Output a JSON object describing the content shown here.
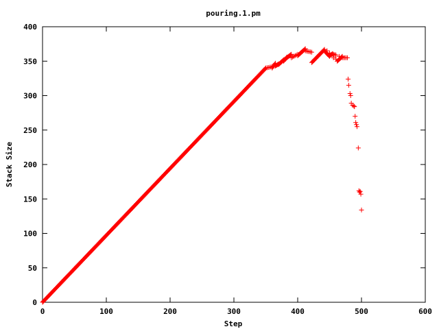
{
  "chart_data": {
    "type": "scatter",
    "title": "pouring.1.pm",
    "xlabel": "Step",
    "ylabel": "Stack Size",
    "xlim": [
      0,
      600
    ],
    "ylim": [
      0,
      400
    ],
    "xticks": [
      0,
      100,
      200,
      300,
      400,
      500,
      600
    ],
    "yticks": [
      0,
      50,
      100,
      150,
      200,
      250,
      300,
      350,
      400
    ],
    "grid": false,
    "legend": "none",
    "marker": "+",
    "colors": {
      "series": "#ff0000",
      "axis": "#000000",
      "background": "#ffffff"
    },
    "series": [
      {
        "segments": [
          {
            "x0": 0,
            "y0": 0,
            "x1": 350,
            "y1": 340,
            "step": 1
          },
          {
            "x0": 350,
            "y0": 340,
            "x1": 360,
            "y1": 342,
            "step": 2
          },
          {
            "x0": 360,
            "y0": 340,
            "x1": 365,
            "y1": 347,
            "step": 1
          },
          {
            "x0": 365,
            "y0": 343,
            "x1": 370,
            "y1": 346,
            "step": 1
          },
          {
            "x0": 370,
            "y0": 345,
            "x1": 378,
            "y1": 352,
            "step": 1
          },
          {
            "x0": 378,
            "y0": 350,
            "x1": 383,
            "y1": 356,
            "step": 1
          },
          {
            "x0": 383,
            "y0": 355,
            "x1": 390,
            "y1": 360,
            "step": 1
          },
          {
            "x0": 390,
            "y0": 355,
            "x1": 400,
            "y1": 360,
            "step": 2
          },
          {
            "x0": 400,
            "y0": 358,
            "x1": 412,
            "y1": 368,
            "step": 1
          },
          {
            "x0": 412,
            "y0": 365,
            "x1": 422,
            "y1": 363,
            "step": 2
          },
          {
            "x0": 422,
            "y0": 348,
            "x1": 442,
            "y1": 367,
            "step": 1
          },
          {
            "x0": 442,
            "y0": 365,
            "x1": 450,
            "y1": 357,
            "step": 1
          },
          {
            "x0": 450,
            "y0": 358,
            "x1": 455,
            "y1": 361,
            "step": 1
          },
          {
            "x0": 455,
            "y0": 360,
            "x1": 460,
            "y1": 359,
            "step": 2
          },
          {
            "x0": 462,
            "y0": 350,
            "x1": 470,
            "y1": 357,
            "step": 1
          },
          {
            "x0": 470,
            "y0": 355,
            "x1": 478,
            "y1": 355,
            "step": 2
          }
        ],
        "points": [
          [
            446,
            365
          ],
          [
            450,
            362
          ],
          [
            456,
            355
          ],
          [
            460,
            353
          ],
          [
            465,
            357
          ],
          [
            479,
            324
          ],
          [
            480,
            315
          ],
          [
            482,
            303
          ],
          [
            483,
            300
          ],
          [
            484,
            289
          ],
          [
            486,
            286
          ],
          [
            488,
            285
          ],
          [
            489,
            284
          ],
          [
            490,
            270
          ],
          [
            491,
            261
          ],
          [
            492,
            258
          ],
          [
            493,
            255
          ],
          [
            495,
            224
          ],
          [
            496,
            162
          ],
          [
            497,
            160
          ],
          [
            498,
            161
          ],
          [
            499,
            157
          ],
          [
            500,
            134
          ]
        ]
      }
    ]
  }
}
